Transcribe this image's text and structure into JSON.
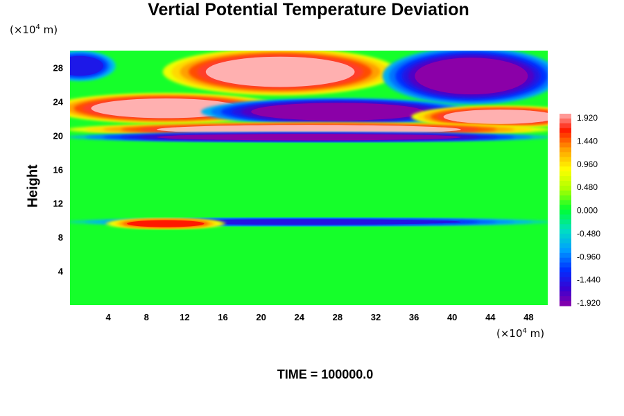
{
  "chart_data": {
    "type": "heatmap",
    "title": "Vertial Potential Temperature Deviation",
    "ylabel": "Height",
    "x_unit": {
      "prefix": "(×10",
      "exp": "4",
      "suffix": " m)"
    },
    "y_unit": {
      "prefix": "(×10",
      "exp": "4",
      "suffix": " m)"
    },
    "x_ticks": [
      4,
      8,
      12,
      16,
      20,
      24,
      28,
      32,
      36,
      40,
      44,
      48
    ],
    "y_ticks": [
      4,
      8,
      12,
      16,
      20,
      24,
      28
    ],
    "xlim": [
      0,
      50
    ],
    "ylim": [
      0,
      30
    ],
    "colorbar": {
      "labels": [
        "1.920",
        "1.440",
        "0.960",
        "0.480",
        "0.000",
        "-0.480",
        "-0.960",
        "-1.440",
        "-1.920"
      ],
      "range": [
        -1.92,
        1.92
      ]
    },
    "footer": "TIME = 100000.0",
    "field_features": [
      {
        "desc": "cold pool top-left",
        "xc": 1,
        "yc": 28.2,
        "rx": 3.5,
        "ry": 1.6,
        "value": -1.4
      },
      {
        "desc": "warm pool top-center",
        "xc": 22,
        "yc": 27.5,
        "rx": 12,
        "ry": 2.6,
        "value": 1.92
      },
      {
        "desc": "cold pool top-right",
        "xc": 42,
        "yc": 27,
        "rx": 9,
        "ry": 3.2,
        "value": -1.92
      },
      {
        "desc": "warm band left",
        "xc": 10,
        "yc": 23.2,
        "rx": 12,
        "ry": 1.6,
        "value": 1.92
      },
      {
        "desc": "cold band center",
        "xc": 28,
        "yc": 22.8,
        "rx": 14,
        "ry": 1.4,
        "value": -1.92
      },
      {
        "desc": "warm band right",
        "xc": 45,
        "yc": 22.2,
        "rx": 9,
        "ry": 1.1,
        "value": 1.92
      },
      {
        "desc": "warm layer",
        "xc": 25,
        "yc": 20.7,
        "rx": 25,
        "ry": 0.6,
        "value": 1.92
      },
      {
        "desc": "cold layer",
        "xc": 25,
        "yc": 19.8,
        "rx": 25,
        "ry": 0.35,
        "value": -1.92
      },
      {
        "desc": "cold streak",
        "xc": 25,
        "yc": 9.8,
        "rx": 25,
        "ry": 0.25,
        "value": -1.44
      },
      {
        "desc": "warm streak",
        "xc": 10,
        "yc": 9.6,
        "rx": 6,
        "ry": 0.4,
        "value": 1.6
      }
    ]
  }
}
